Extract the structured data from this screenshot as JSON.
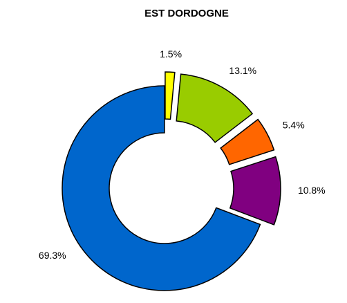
{
  "chart_data": {
    "type": "donut",
    "title": "EST DORDOGNE",
    "categories": [
      null,
      null,
      null,
      null,
      null
    ],
    "values": [
      1.5,
      13.1,
      5.4,
      10.8,
      69.3
    ],
    "value_labels": [
      "1.5%",
      "13.1%",
      "5.4%",
      "10.8%",
      "69.3%"
    ],
    "colors": [
      "#ffff00",
      "#99cc00",
      "#ff6600",
      "#800080",
      "#0066cc"
    ]
  }
}
